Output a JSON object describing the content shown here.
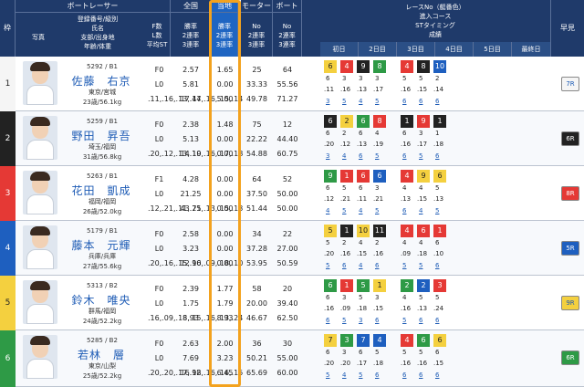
{
  "header": {
    "lane": "枠",
    "racer_group": "ボートレーサー",
    "photo": "写真",
    "racer_info": [
      "登録番号/級別",
      "氏名",
      "支部/出身地",
      "年齢/体重"
    ],
    "f_count": [
      "F数",
      "L数",
      "平均ST"
    ],
    "national": "全国",
    "national_rates": [
      "勝率",
      "2連率",
      "3連率"
    ],
    "local": "当地",
    "local_rates": [
      "勝率",
      "2連率",
      "3連率"
    ],
    "motor": "モーター",
    "motor_rates": [
      "No",
      "2連率",
      "3連率"
    ],
    "boat": "ボート",
    "boat_rates": [
      "No",
      "2連率",
      "3連率"
    ],
    "series": [
      "レースNo（艇番色）",
      "進入コース",
      "STタイミング",
      "成績"
    ],
    "days": [
      "初日",
      "2日目",
      "3日目",
      "4日目",
      "5日目",
      "最終日"
    ],
    "early": "早見",
    "vertical": [
      "今",
      "節",
      "成",
      "績"
    ]
  },
  "colors": {
    "lane1": "#f5f5f5",
    "lane2": "#222222",
    "lane3": "#e53935",
    "lane4": "#1e5fbf",
    "lane5": "#f4d03f",
    "lane6": "#2e9a46",
    "header": "#1f3a6a",
    "highlight": "#f3a21e"
  },
  "rows": [
    {
      "lane": "1",
      "id_class": "5292 / B1",
      "name": "佐藤　右京",
      "branch": "東京/宮城",
      "age_weight": "23歳/56.1kg",
      "f": "F0",
      "l": "L0",
      "st": [
        ".11",
        ".16",
        ".13",
        ".17",
        ".16",
        ".15",
        ".14"
      ],
      "nat": [
        "2.57",
        "5.81",
        "17.44"
      ],
      "loc": [
        "1.65",
        "0.00",
        "5.00"
      ],
      "motor": [
        "25",
        "33.33",
        "49.78"
      ],
      "boat": [
        "64",
        "55.56",
        "71.27"
      ],
      "early": "7R",
      "series": [
        {
          "num": "6",
          "col": "#f4d03f"
        },
        {
          "num": "4",
          "col": "#e53935"
        },
        {
          "num": "9",
          "col": "#222222"
        },
        {
          "num": "8",
          "col": "#2e9a46"
        },
        {
          "num": "4",
          "col": "#e53935"
        },
        {
          "num": "8",
          "col": "#222222"
        },
        {
          "num": "10",
          "col": "#1e5fbf"
        }
      ],
      "course": [
        "6",
        "3",
        "3",
        "3",
        "5",
        "5",
        "2"
      ],
      "res": [
        "3",
        "5",
        "4",
        "5",
        "6",
        "6",
        "6"
      ]
    },
    {
      "lane": "2",
      "id_class": "5259 / B1",
      "name": "野田　昇吾",
      "branch": "埼玉/福岡",
      "age_weight": "31歳/56.8kg",
      "f": "F0",
      "l": "L0",
      "st": [
        ".20",
        ".12",
        ".13",
        ".19",
        ".16",
        ".17",
        ".18"
      ],
      "nat": [
        "2.38",
        "5.13",
        "14.10"
      ],
      "loc": [
        "1.48",
        "0.00",
        "0.00"
      ],
      "motor": [
        "75",
        "22.22",
        "54.88"
      ],
      "boat": [
        "12",
        "44.40",
        "60.75"
      ],
      "early": "6R",
      "series": [
        {
          "num": "6",
          "col": "#222222"
        },
        {
          "num": "2",
          "col": "#f4d03f"
        },
        {
          "num": "6",
          "col": "#2e9a46"
        },
        {
          "num": "8",
          "col": "#e53935"
        },
        {
          "num": "1",
          "col": "#222222"
        },
        {
          "num": "9",
          "col": "#e53935"
        },
        {
          "num": "1",
          "col": "#222222"
        }
      ],
      "course": [
        "6",
        "2",
        "6",
        "4",
        "6",
        "3",
        "1"
      ],
      "res": [
        "3",
        "4",
        "6",
        "5",
        "6",
        "5",
        "6"
      ]
    },
    {
      "lane": "3",
      "id_class": "5263 / B1",
      "name": "花田　凱成",
      "branch": "福岡/福岡",
      "age_weight": "26歳/52.0kg",
      "f": "F1",
      "l": "L0",
      "st": [
        ".12",
        ".21",
        ".11",
        ".21",
        ".13",
        ".15",
        ".13"
      ],
      "nat": [
        "4.28",
        "21.25",
        "43.75"
      ],
      "loc": [
        "0.00",
        "0.00",
        "0.00"
      ],
      "motor": [
        "64",
        "37.50",
        "51.44"
      ],
      "boat": [
        "52",
        "50.00",
        "50.00"
      ],
      "early": "8R",
      "series": [
        {
          "num": "9",
          "col": "#2e9a46"
        },
        {
          "num": "1",
          "col": "#e53935"
        },
        {
          "num": "6",
          "col": "#e53935"
        },
        {
          "num": "6",
          "col": "#1e5fbf"
        },
        {
          "num": "4",
          "col": "#e53935"
        },
        {
          "num": "9",
          "col": "#f4d03f"
        },
        {
          "num": "6",
          "col": "#f4d03f"
        }
      ],
      "course": [
        "6",
        "5",
        "6",
        "3",
        "4",
        "4",
        "5"
      ],
      "res": [
        "4",
        "5",
        "4",
        "5",
        "6",
        "4",
        "5"
      ]
    },
    {
      "lane": "4",
      "id_class": "5179 / B1",
      "name": "藤本　元輝",
      "branch": "兵庫/兵庫",
      "age_weight": "27歳/55.6kg",
      "f": "F0",
      "l": "L0",
      "st": [
        ".20",
        ".16",
        ".15",
        ".16",
        ".09",
        ".18",
        ".10"
      ],
      "nat": [
        "2.58",
        "3.23",
        "12.90"
      ],
      "loc": [
        "0.00",
        "0.00",
        "0.00"
      ],
      "motor": [
        "34",
        "37.28",
        "53.95"
      ],
      "boat": [
        "22",
        "27.00",
        "50.59"
      ],
      "early": "5R",
      "series": [
        {
          "num": "5",
          "col": "#f4d03f"
        },
        {
          "num": "1",
          "col": "#222222"
        },
        {
          "num": "10",
          "col": "#f4d03f"
        },
        {
          "num": "11",
          "col": "#222222"
        },
        {
          "num": "4",
          "col": "#e53935"
        },
        {
          "num": "6",
          "col": "#e53935"
        },
        {
          "num": "1",
          "col": "#e53935"
        }
      ],
      "course": [
        "5",
        "2",
        "4",
        "2",
        "4",
        "4",
        "6"
      ],
      "res": [
        "5",
        "6",
        "4",
        "6",
        "5",
        "5",
        "6"
      ]
    },
    {
      "lane": "5",
      "id_class": "5313 / B2",
      "name": "鈴木　唯央",
      "branch": "群馬/福岡",
      "age_weight": "24歳/52.2kg",
      "f": "F0",
      "l": "L0",
      "st": [
        ".16",
        ".09",
        ".18",
        ".15",
        ".16",
        ".13",
        ".24"
      ],
      "nat": [
        "2.39",
        "1.75",
        "8.93"
      ],
      "loc": [
        "1.77",
        "1.79",
        "8.93"
      ],
      "motor": [
        "58",
        "20.00",
        "46.67"
      ],
      "boat": [
        "20",
        "39.40",
        "62.50"
      ],
      "early": "9R",
      "series": [
        {
          "num": "6",
          "col": "#2e9a46"
        },
        {
          "num": "1",
          "col": "#e53935"
        },
        {
          "num": "5",
          "col": "#2e9a46"
        },
        {
          "num": "1",
          "col": "#f4d03f"
        },
        {
          "num": "2",
          "col": "#2e9a46"
        },
        {
          "num": "2",
          "col": "#1e5fbf"
        },
        {
          "num": "3",
          "col": "#e53935"
        }
      ],
      "course": [
        "6",
        "3",
        "5",
        "3",
        "4",
        "5",
        "5"
      ],
      "res": [
        "6",
        "5",
        "3",
        "6",
        "5",
        "6",
        "6"
      ]
    },
    {
      "lane": "6",
      "id_class": "5285 / B2",
      "name": "若林　層",
      "branch": "東京/山梨",
      "age_weight": "25歳/52.2kg",
      "f": "F0",
      "l": "L0",
      "st": [
        ".20",
        ".20",
        ".17",
        ".18",
        ".16",
        ".16",
        ".15"
      ],
      "nat": [
        "2.63",
        "7.69",
        "16.92"
      ],
      "loc": [
        "2.00",
        "3.23",
        "6.45"
      ],
      "motor": [
        "36",
        "50.21",
        "65.69"
      ],
      "boat": [
        "30",
        "55.00",
        "60.00"
      ],
      "early": "6R",
      "series": [
        {
          "num": "7",
          "col": "#f4d03f"
        },
        {
          "num": "3",
          "col": "#2e9a46"
        },
        {
          "num": "7",
          "col": "#1e5fbf"
        },
        {
          "num": "4",
          "col": "#1e5fbf"
        },
        {
          "num": "4",
          "col": "#e53935"
        },
        {
          "num": "6",
          "col": "#2e9a46"
        },
        {
          "num": "6",
          "col": "#f4d03f"
        }
      ],
      "course": [
        "6",
        "3",
        "6",
        "5",
        "5",
        "5",
        "6"
      ],
      "res": [
        "5",
        "4",
        "5",
        "6",
        "6",
        "6",
        "6"
      ]
    }
  ]
}
